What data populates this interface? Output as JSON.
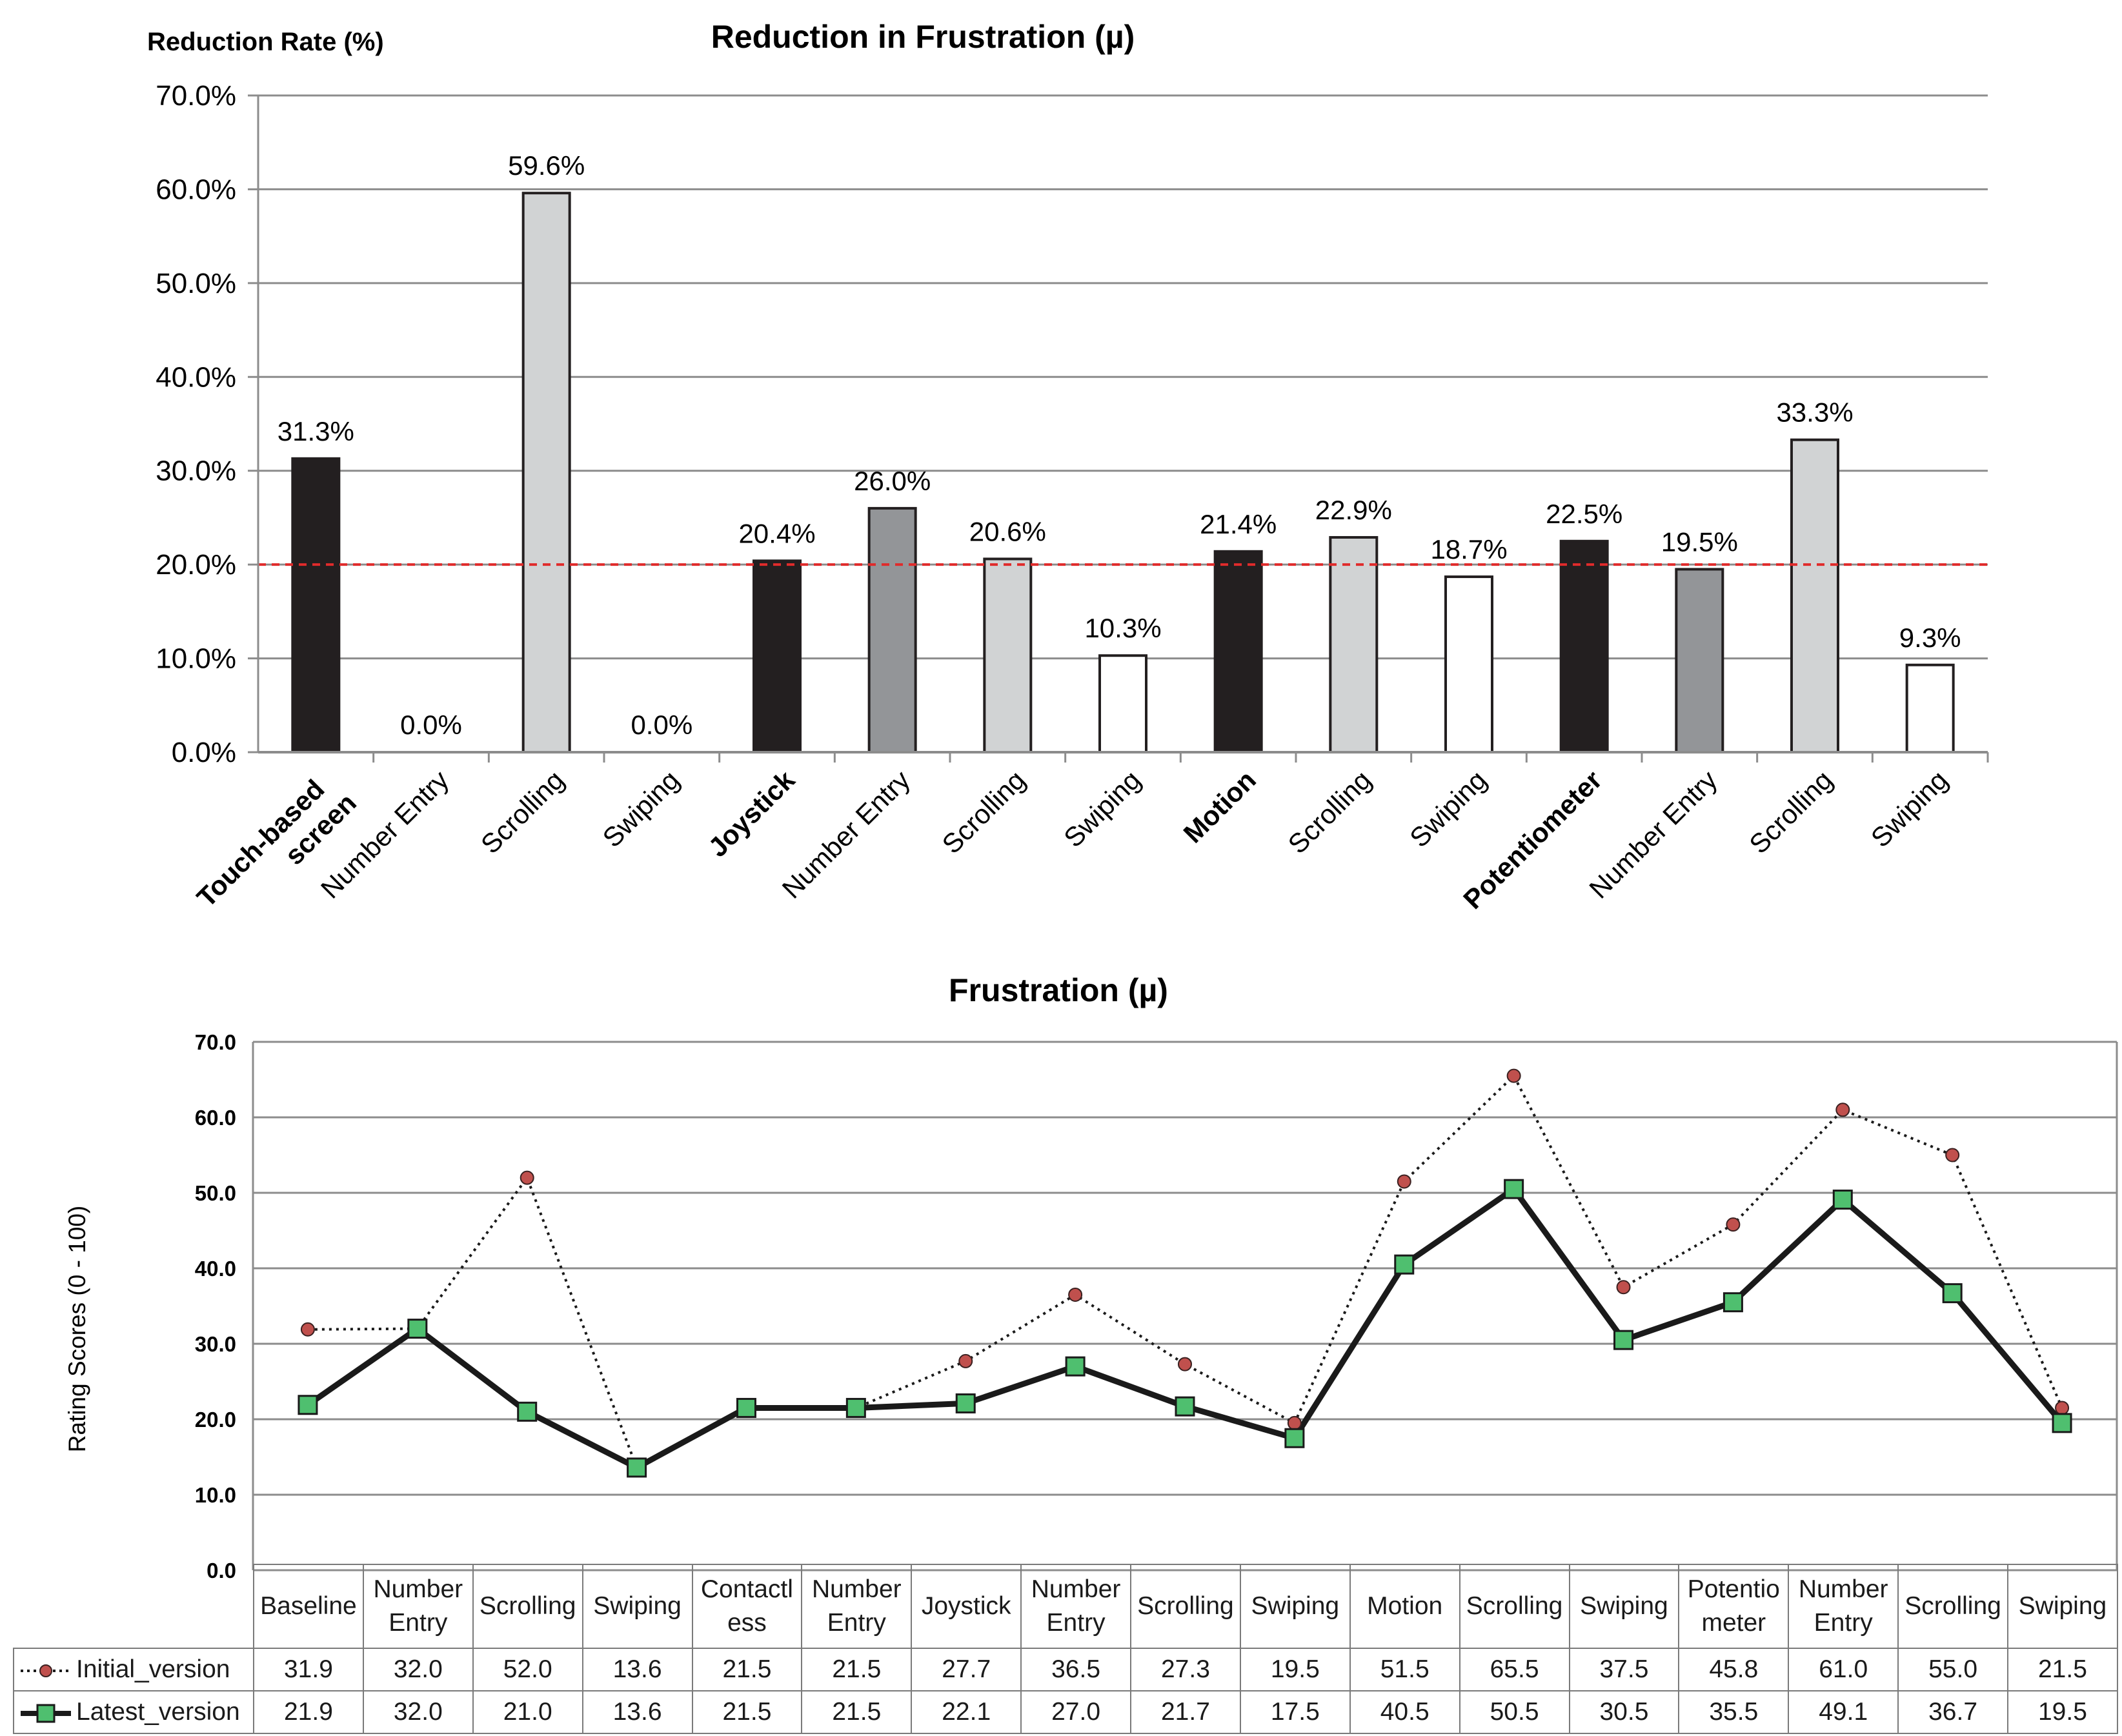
{
  "chart_data": [
    {
      "type": "bar",
      "title": "Reduction in Frustration (µ)",
      "ylabel": "Reduction Rate (%)",
      "xlabel": "",
      "ylim": [
        0,
        70
      ],
      "ytick_step": 10,
      "value_suffix": "%",
      "reference_line": {
        "value": 20,
        "style": "dashed",
        "color": "#e02b2b"
      },
      "categories": [
        "Touch-based screen",
        "Number Entry",
        "Scrolling",
        "Swiping",
        "Joystick",
        "Number Entry",
        "Scrolling",
        "Swiping",
        "Motion",
        "Scrolling",
        "Swiping",
        "Potentiometer",
        "Number Entry",
        "Scrolling",
        "Swiping"
      ],
      "category_bold": [
        true,
        false,
        false,
        false,
        true,
        false,
        false,
        false,
        true,
        false,
        false,
        true,
        false,
        false,
        false
      ],
      "values": [
        31.3,
        0.0,
        59.6,
        0.0,
        20.4,
        26.0,
        20.6,
        10.3,
        21.4,
        22.9,
        18.7,
        22.5,
        19.5,
        33.3,
        9.3
      ],
      "bar_colors": [
        "#231f20",
        "#d1d3d4",
        "#d1d3d4",
        "#ffffff",
        "#231f20",
        "#939598",
        "#d1d3d4",
        "#ffffff",
        "#231f20",
        "#d1d3d4",
        "#ffffff",
        "#231f20",
        "#939598",
        "#d1d3d4",
        "#ffffff"
      ]
    },
    {
      "type": "line",
      "title": "Frustration (µ)",
      "ylabel": "Rating Scores (0 - 100)",
      "xlabel": "",
      "ylim": [
        0,
        70
      ],
      "ytick_step": 10,
      "categories": [
        "Baseline",
        "Number Entry",
        "Scrolling",
        "Swiping",
        "Contactless",
        "Number Entry",
        "Joystick",
        "Number Entry",
        "Scrolling",
        "Swiping",
        "Motion",
        "Scrolling",
        "Swiping",
        "Potentiometer",
        "Number Entry",
        "Scrolling",
        "Swiping"
      ],
      "category_display": [
        [
          "Baseline"
        ],
        [
          "Number",
          "Entry"
        ],
        [
          "Scrolling"
        ],
        [
          "Swiping"
        ],
        [
          "Contactl",
          "ess"
        ],
        [
          "Number",
          "Entry"
        ],
        [
          "Joystick"
        ],
        [
          "Number",
          "Entry"
        ],
        [
          "Scrolling"
        ],
        [
          "Swiping"
        ],
        [
          "Motion"
        ],
        [
          "Scrolling"
        ],
        [
          "Swiping"
        ],
        [
          "Potentio",
          "meter"
        ],
        [
          "Number",
          "Entry"
        ],
        [
          "Scrolling"
        ],
        [
          "Swiping"
        ]
      ],
      "series": [
        {
          "name": "Initial_version",
          "style": "dotted",
          "line_color": "#1a1a1a",
          "marker": "circle",
          "marker_color": "#c0504d",
          "values": [
            31.9,
            32.0,
            52.0,
            13.6,
            21.5,
            21.5,
            27.7,
            36.5,
            27.3,
            19.5,
            51.5,
            65.5,
            37.5,
            45.8,
            61.0,
            55.0,
            21.5
          ]
        },
        {
          "name": "Latest_version",
          "style": "solid",
          "line_color": "#1a1a1a",
          "marker": "square",
          "marker_color": "#4fbf6f",
          "values": [
            21.9,
            32.0,
            21.0,
            13.6,
            21.5,
            21.5,
            22.1,
            27.0,
            21.7,
            17.5,
            40.5,
            50.5,
            30.5,
            35.5,
            49.1,
            36.7,
            19.5
          ]
        }
      ]
    }
  ]
}
